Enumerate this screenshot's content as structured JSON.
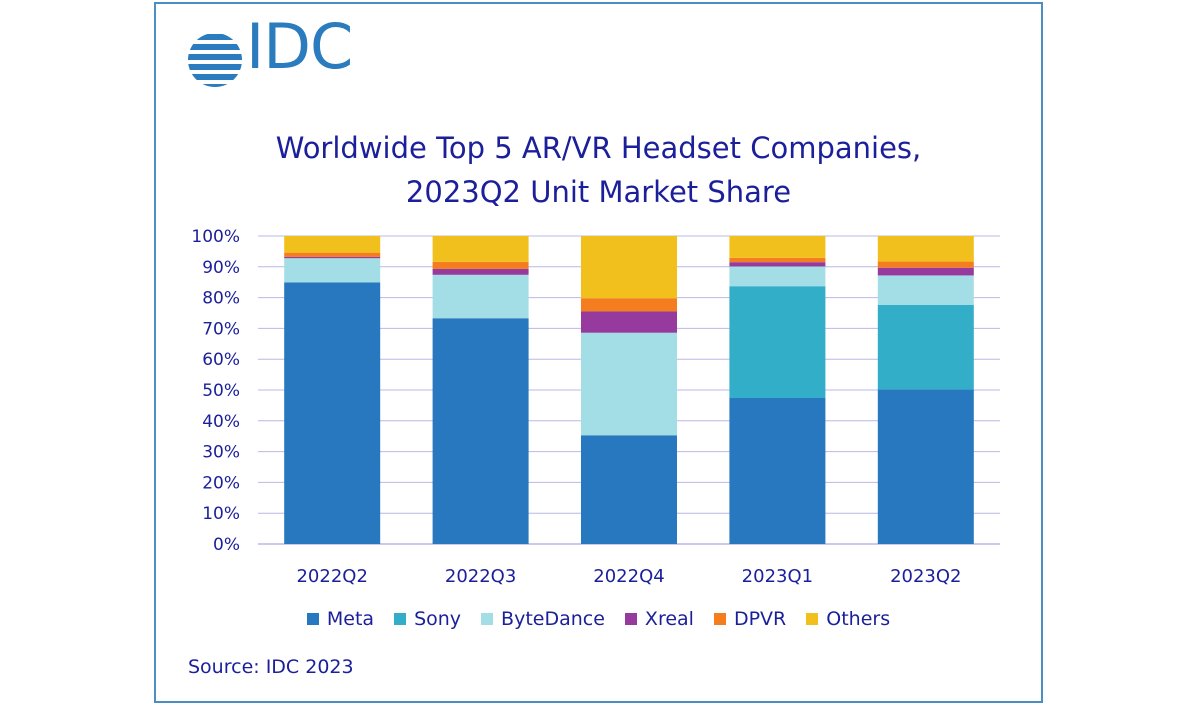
{
  "logo": {
    "text": "IDC",
    "color": "#2b7bbf"
  },
  "title_lines": [
    "Worldwide Top 5 AR/VR Headset Companies,",
    "2023Q2 Unit Market Share"
  ],
  "source": "Source: IDC 2023",
  "colors": {
    "Meta": "#2778be",
    "Sony": "#33aec9",
    "ByteDance": "#a3dde6",
    "Xreal": "#963a9d",
    "DPVR": "#f47d20",
    "Others": "#f2c01c",
    "text": "#1b1f9a",
    "grid": "#b8b8e6"
  },
  "chart_data": {
    "type": "bar",
    "stacked": true,
    "title": "Worldwide Top 5 AR/VR Headset Companies, 2023Q2 Unit Market Share",
    "xlabel": "",
    "ylabel": "",
    "ylim": [
      0,
      100
    ],
    "y_ticks": [
      "0%",
      "10%",
      "20%",
      "30%",
      "40%",
      "50%",
      "60%",
      "70%",
      "80%",
      "90%",
      "100%"
    ],
    "categories": [
      "2022Q2",
      "2022Q3",
      "2022Q4",
      "2023Q1",
      "2023Q2"
    ],
    "series": [
      {
        "name": "Meta",
        "values": [
          84.9,
          73.3,
          35.3,
          47.4,
          50.2
        ]
      },
      {
        "name": "Sony",
        "values": [
          0,
          0,
          0,
          36.3,
          27.4
        ]
      },
      {
        "name": "ByteDance",
        "values": [
          7.9,
          14.1,
          33.3,
          6.4,
          9.6
        ]
      },
      {
        "name": "Xreal",
        "values": [
          0.4,
          1.9,
          6.9,
          1.4,
          2.5
        ]
      },
      {
        "name": "DPVR",
        "values": [
          1.4,
          2.3,
          4.3,
          1.4,
          2.0
        ]
      },
      {
        "name": "Others",
        "values": [
          5.4,
          8.4,
          20.2,
          7.1,
          8.3
        ]
      }
    ],
    "legend": {
      "position": "bottom"
    },
    "grid": true
  }
}
